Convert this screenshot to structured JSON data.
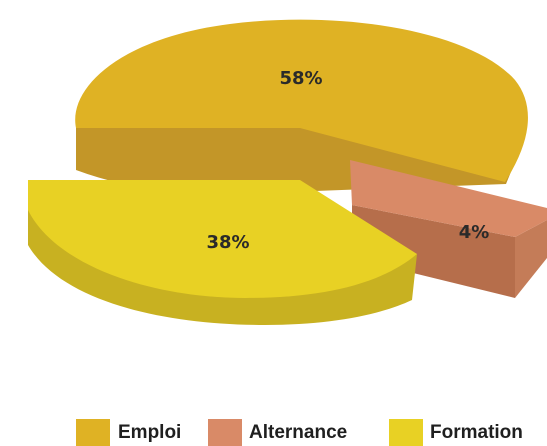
{
  "chart_data": {
    "type": "pie",
    "style": "3d-exploded",
    "categories": [
      "Emploi",
      "Alternance",
      "Formation"
    ],
    "values": [
      58,
      4,
      38
    ],
    "labels": [
      "58%",
      "4%",
      "38%"
    ],
    "colors": {
      "Emploi": "#dfb224",
      "Alternance": "#d98a67",
      "Formation": "#e8d124"
    },
    "legend_position": "bottom"
  }
}
